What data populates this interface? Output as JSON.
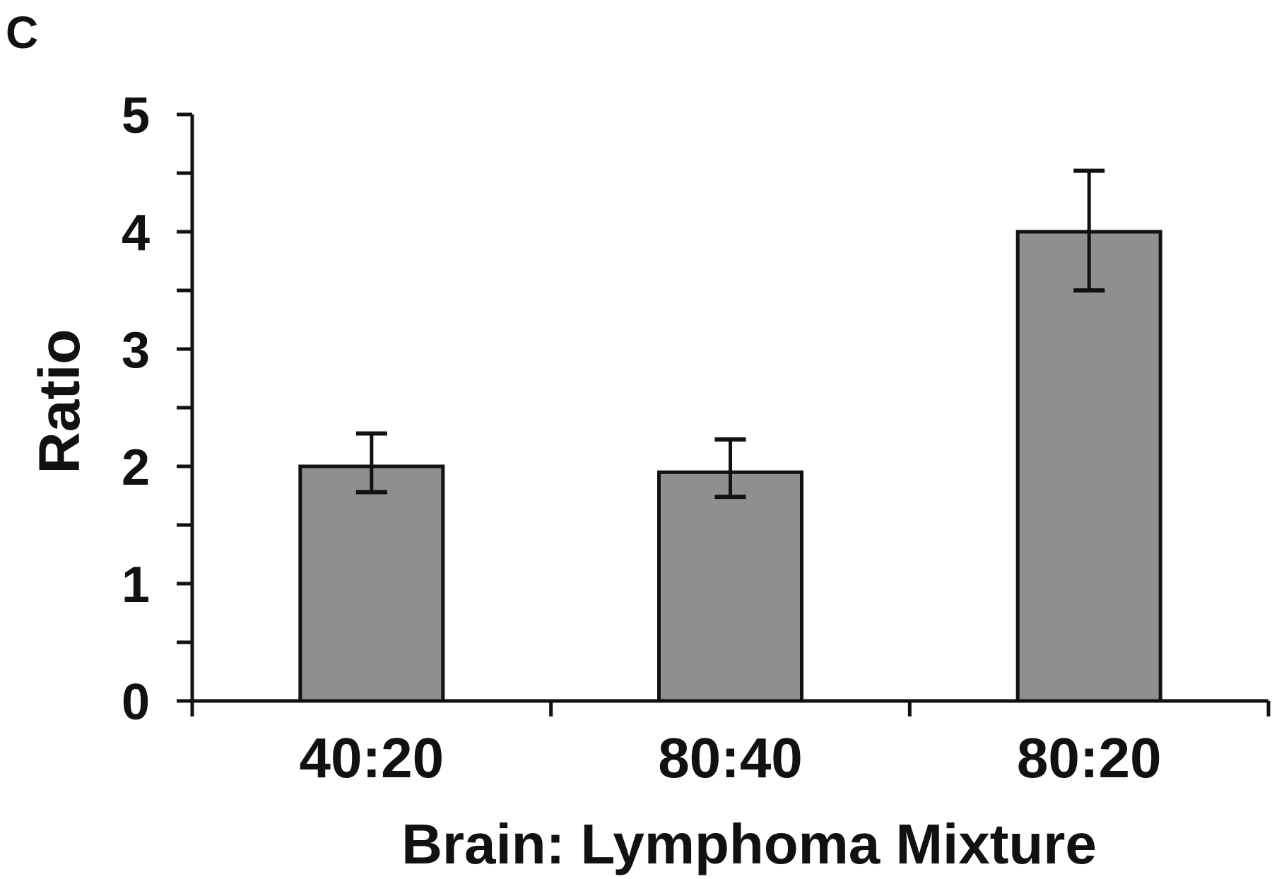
{
  "panel_label": "C",
  "colors": {
    "bar_fill": "#8f8f8f",
    "bar_stroke": "#111111",
    "axis": "#111111",
    "background": "#ffffff"
  },
  "chart_data": {
    "type": "bar",
    "title": "",
    "xlabel": "Brain: Lymphoma Mixture",
    "ylabel": "Ratio",
    "categories": [
      "40:20",
      "80:40",
      "80:20"
    ],
    "values": [
      2.0,
      1.95,
      4.0
    ],
    "error": [
      {
        "low": 1.78,
        "high": 2.28
      },
      {
        "low": 1.74,
        "high": 2.23
      },
      {
        "low": 3.5,
        "high": 4.52
      }
    ],
    "ylim": [
      0,
      5
    ],
    "yticks": [
      0,
      1,
      2,
      3,
      4,
      5
    ],
    "y_minor_step": 0.5,
    "grid": false,
    "legend": "none"
  }
}
